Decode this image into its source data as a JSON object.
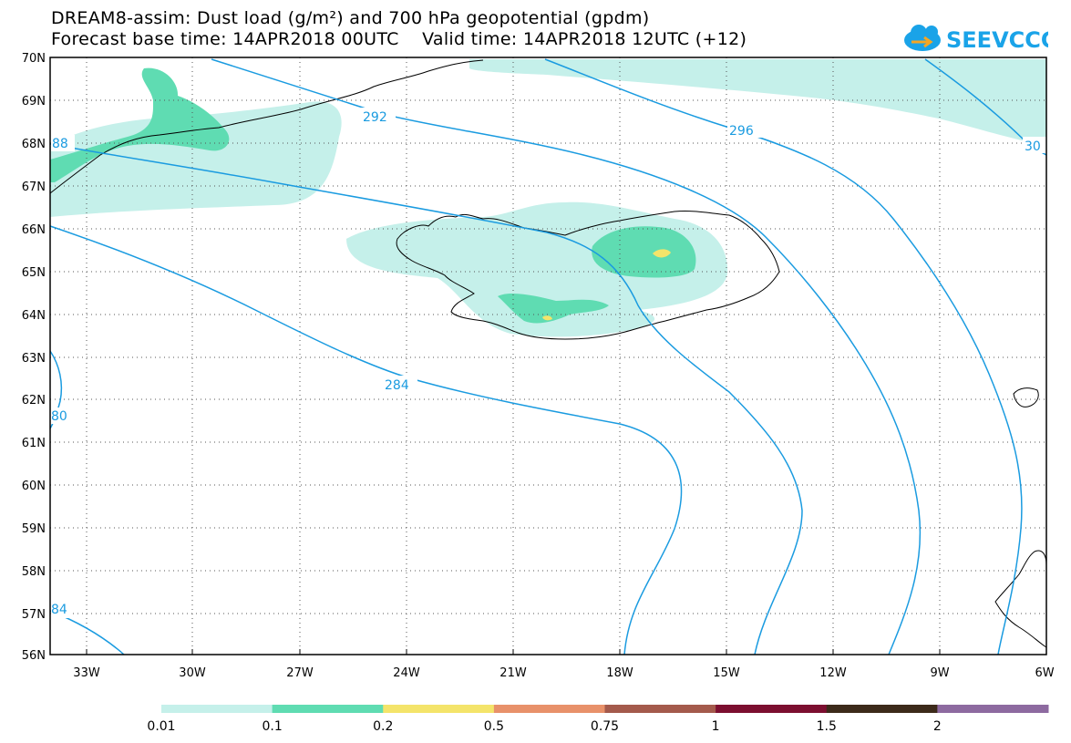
{
  "title": {
    "line1": "DREAM8-assim: Dust load (g/m²) and 700 hPa geopotential (gpdm)",
    "line2": "Forecast base time: 14APR2018 00UTC    Valid time: 14APR2018 12UTC (+12)"
  },
  "logo": {
    "text": "SEEVCCC",
    "icon": "cloud-logo-icon",
    "color": "#1aa3e8"
  },
  "axes": {
    "lat_labels": [
      "70N",
      "69N",
      "68N",
      "67N",
      "66N",
      "65N",
      "64N",
      "63N",
      "62N",
      "61N",
      "60N",
      "59N",
      "58N",
      "57N",
      "56N"
    ],
    "lon_labels": [
      "33W",
      "30W",
      "27W",
      "24W",
      "21W",
      "18W",
      "15W",
      "12W",
      "9W",
      "6W"
    ]
  },
  "contour_labels": [
    "292",
    "296",
    "284",
    "88",
    "30",
    "80",
    "84"
  ],
  "colorbar": {
    "colors": [
      "#c5f0ea",
      "#5fdcb2",
      "#f4e46a",
      "#e8916a",
      "#a45a4c",
      "#7c0f30",
      "#3c2a1a",
      "#8d6aa0"
    ],
    "labels": [
      "0.01",
      "0.1",
      "0.2",
      "0.5",
      "0.75",
      "1",
      "1.5",
      "2"
    ]
  },
  "colors": {
    "contour": "#1a9be0",
    "coast": "#000000"
  }
}
